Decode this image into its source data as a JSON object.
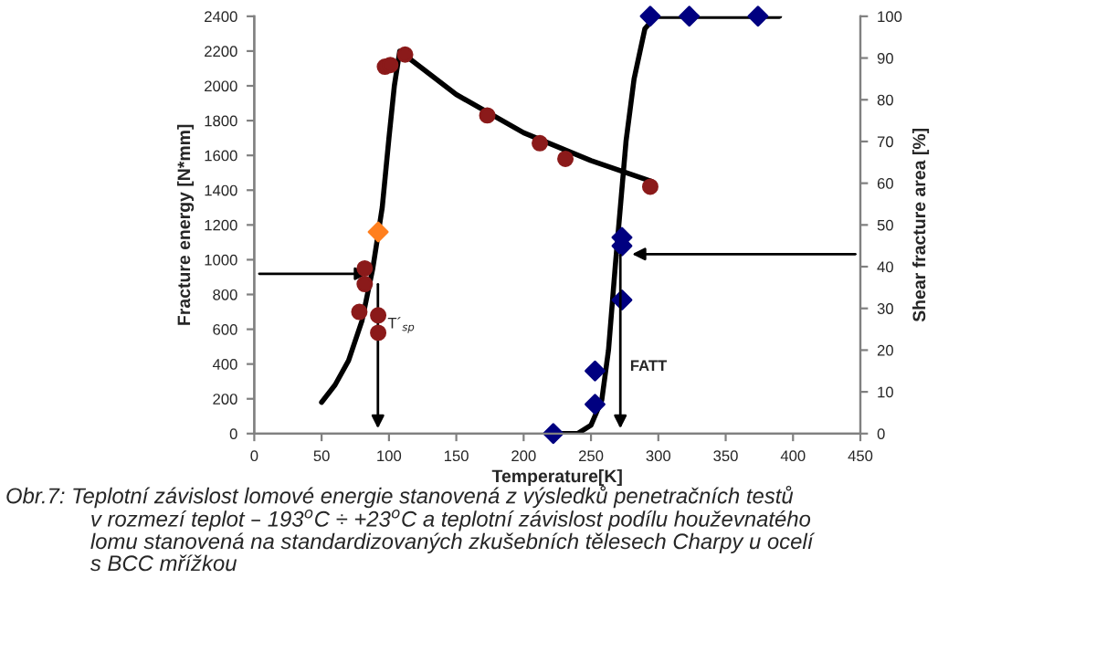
{
  "chart_data": {
    "type": "scatter",
    "xlabel": "Temperature[K]",
    "ylabel": "Fracture energy [N*mm]",
    "y2label": "Shear fracture area [%]",
    "xlim": [
      0,
      450
    ],
    "xticks": [
      0,
      50,
      100,
      150,
      200,
      250,
      300,
      350,
      400,
      450
    ],
    "ylim": [
      0,
      2400
    ],
    "yticks": [
      0,
      200,
      400,
      600,
      800,
      1000,
      1200,
      1400,
      1600,
      1800,
      2000,
      2200,
      2400
    ],
    "y2lim": [
      0,
      100
    ],
    "y2ticks": [
      0,
      10,
      20,
      30,
      40,
      50,
      60,
      70,
      80,
      90,
      100
    ],
    "grid": false,
    "series": [
      {
        "type": "line",
        "color": "#000000",
        "marker": "none",
        "line_style": "solid",
        "x": [
          50,
          60,
          70,
          80,
          88,
          95,
          100,
          104,
          108,
          150,
          200,
          250,
          295
        ],
        "values": [
          180,
          280,
          420,
          650,
          950,
          1300,
          1700,
          2000,
          2200,
          1950,
          1730,
          1570,
          1450
        ]
      },
      {
        "type": "line",
        "axis": "y2",
        "color": "#000000",
        "marker": "none",
        "line_style": "solid",
        "x": [
          222,
          240,
          250,
          258,
          263,
          268,
          272,
          276,
          282,
          290,
          298,
          390
        ],
        "values": [
          0,
          0,
          2,
          8,
          20,
          40,
          55,
          70,
          85,
          97,
          100,
          100
        ]
      },
      {
        "color": "#8b1a1a",
        "marker": "circle",
        "x": [
          78,
          82,
          82,
          92,
          92,
          97,
          101,
          112,
          173,
          212,
          231,
          294
        ],
        "values": [
          700,
          950,
          860,
          680,
          580,
          2110,
          2120,
          2180,
          1830,
          1670,
          1580,
          1420
        ]
      },
      {
        "axis": "y2",
        "color": "#000080",
        "marker": "diamond",
        "x": [
          222,
          253,
          253,
          273,
          273,
          273,
          294,
          323,
          374
        ],
        "values": [
          0,
          7,
          15,
          32,
          45,
          47,
          100,
          100,
          100
        ]
      },
      {
        "color": "#ff7f1e",
        "marker": "diamond",
        "x": [
          92
        ],
        "values": [
          1160
        ]
      }
    ],
    "annotations": [
      "T´$_{sp}$",
      "FATT",
      "Obr.7: Teplotní závislost lomové energie stanovená z výsledků penetračních testů\n              v rozmezí teplot – 193$^{o}$C ÷ +23$^{o}$C a teplotní závislost podílu houževnatého\n              lomu stanovená na standardizovaných zkušebních tělesech Charpy u ocelí\n              s BCC mřížkou"
    ]
  }
}
